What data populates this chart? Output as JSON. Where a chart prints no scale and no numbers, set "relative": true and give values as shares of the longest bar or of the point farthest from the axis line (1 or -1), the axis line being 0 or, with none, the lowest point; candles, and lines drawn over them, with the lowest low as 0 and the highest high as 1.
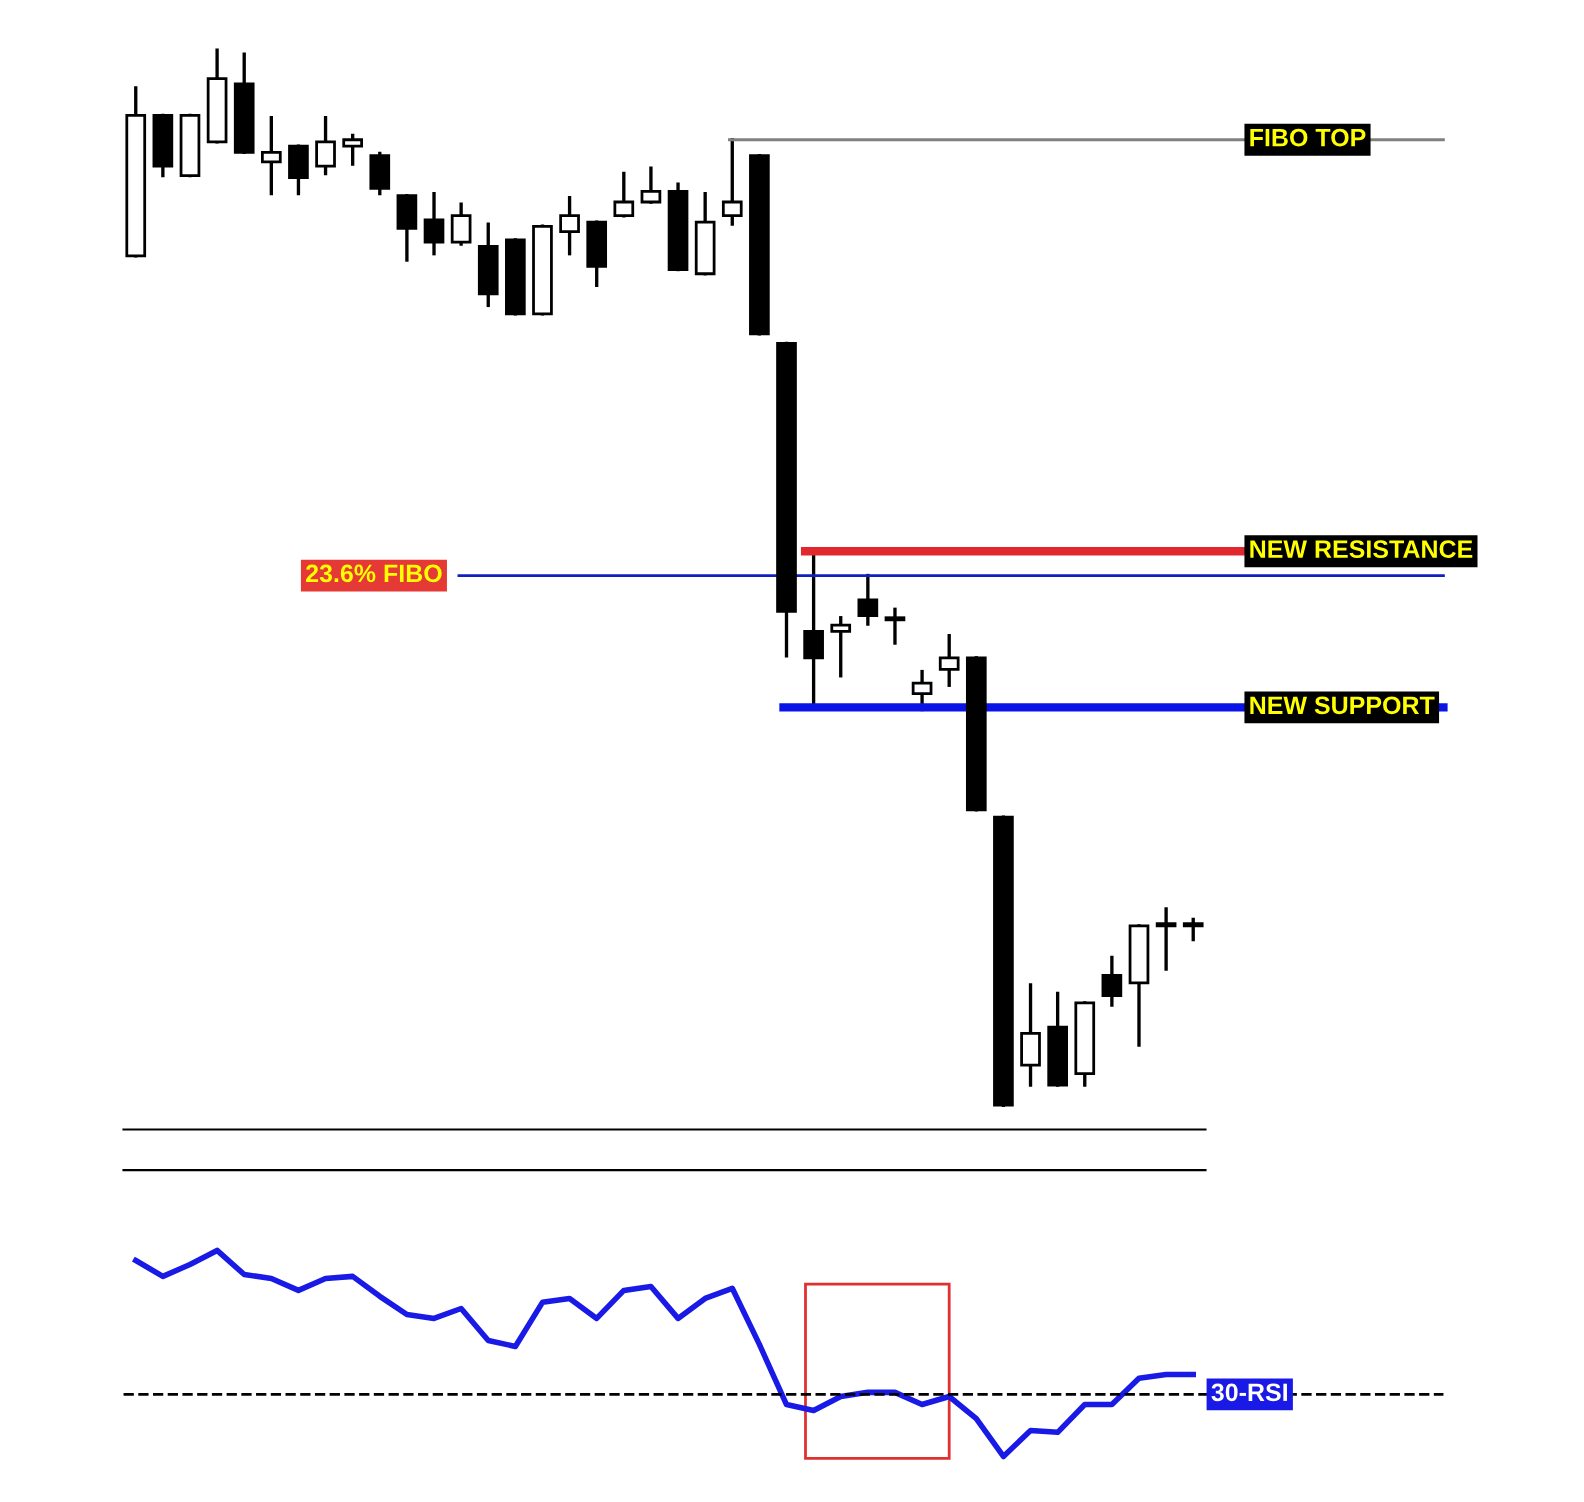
{
  "chart_data": [
    {
      "type": "candlestick",
      "relative": true,
      "categories": [
        null,
        null,
        null,
        null,
        null,
        null,
        null,
        null,
        null,
        null,
        null,
        null,
        null,
        null,
        null,
        null,
        null,
        null,
        null,
        null,
        null,
        null,
        null,
        null,
        null,
        null,
        null,
        null,
        null,
        null,
        null,
        null,
        null,
        null,
        null,
        null,
        null,
        null,
        null,
        null
      ],
      "ohlc": [
        [
          0.805,
          0.964,
          0.805,
          0.938
        ],
        [
          0.938,
          0.938,
          0.881,
          0.89
        ],
        [
          0.881,
          0.938,
          0.881,
          0.938
        ],
        [
          0.913,
          1.0,
          0.913,
          0.973
        ],
        [
          0.968,
          0.996,
          0.903,
          0.903
        ],
        [
          0.894,
          0.936,
          0.864,
          0.903
        ],
        [
          0.909,
          0.909,
          0.864,
          0.879
        ],
        [
          0.89,
          0.936,
          0.883,
          0.913
        ],
        [
          0.909,
          0.919,
          0.892,
          0.915
        ],
        [
          0.9,
          0.902,
          0.864,
          0.869
        ],
        [
          0.862,
          0.862,
          0.801,
          0.831
        ],
        [
          0.839,
          0.864,
          0.807,
          0.818
        ],
        [
          0.818,
          0.854,
          0.816,
          0.843
        ],
        [
          0.814,
          0.835,
          0.758,
          0.769
        ],
        [
          0.82,
          0.82,
          0.75,
          0.75
        ],
        [
          0.75,
          0.833,
          0.75,
          0.833
        ],
        [
          0.828,
          0.86,
          0.807,
          0.843
        ],
        [
          0.837,
          0.837,
          0.777,
          0.795
        ],
        [
          0.843,
          0.883,
          0.843,
          0.856
        ],
        [
          0.856,
          0.888,
          0.856,
          0.866
        ],
        [
          0.866,
          0.873,
          0.792,
          0.792
        ],
        [
          0.788,
          0.864,
          0.788,
          0.837
        ],
        [
          0.843,
          0.915,
          0.835,
          0.856
        ],
        [
          0.9,
          0.9,
          0.731,
          0.731
        ],
        [
          0.722,
          0.722,
          0.426,
          0.468
        ],
        [
          0.449,
          0.521,
          0.379,
          0.424
        ],
        [
          0.449,
          0.462,
          0.407,
          0.455
        ],
        [
          0.479,
          0.502,
          0.456,
          0.464
        ],
        [
          0.462,
          0.47,
          0.438,
          0.46
        ],
        [
          0.39,
          0.411,
          0.375,
          0.4
        ],
        [
          0.413,
          0.445,
          0.398,
          0.424
        ],
        [
          0.424,
          0.424,
          0.28,
          0.28
        ],
        [
          0.273,
          0.273,
          0,
          0
        ],
        [
          0.038,
          0.114,
          0.019,
          0.068
        ],
        [
          0.074,
          0.106,
          0.019,
          0.019
        ],
        [
          0.03,
          0.097,
          0.019,
          0.097
        ],
        [
          0.123,
          0.14,
          0.095,
          0.104
        ],
        [
          0.116,
          0.17,
          0.057,
          0.17
        ],
        [
          0.172,
          0.186,
          0.129,
          0.17
        ],
        [
          0.172,
          0.176,
          0.157,
          0.17
        ]
      ],
      "ref_lines": [
        {
          "axis": "y",
          "value": 0.915,
          "label": "FIBO TOP",
          "color": "#808080"
        },
        {
          "axis": "y",
          "value": 0.525,
          "label": "NEW RESISTANCE",
          "color": "#e0282e"
        },
        {
          "axis": "y",
          "value": 0.377,
          "label": "NEW SUPPORT",
          "color": "#0a14e6"
        },
        {
          "axis": "y",
          "value": 0.502,
          "label": "23.6% FIBO",
          "color": "#1020c0"
        }
      ],
      "grid": false,
      "legend": false
    },
    {
      "type": "line",
      "relative": true,
      "categories": [
        null,
        null,
        null,
        null,
        null,
        null,
        null,
        null,
        null,
        null,
        null,
        null,
        null,
        null,
        null,
        null,
        null,
        null,
        null,
        null,
        null,
        null,
        null,
        null,
        null,
        null,
        null,
        null,
        null,
        null,
        null,
        null,
        null,
        null,
        null,
        null,
        null,
        null,
        null,
        null
      ],
      "series": [
        {
          "color": "#1a1ae6",
          "values": [
            0.951,
            0.874,
            0.932,
            1.0,
            0.883,
            0.864,
            0.806,
            0.864,
            0.874,
            0.777,
            0.689,
            0.67,
            0.718,
            0.563,
            0.534,
            0.748,
            0.767,
            0.67,
            0.806,
            0.825,
            0.67,
            0.767,
            0.816,
            0.544,
            0.252,
            0.223,
            0.291,
            0.311,
            0.311,
            0.252,
            0.291,
            0.184,
            0,
            0.126,
            0.117,
            0.252,
            0.252,
            0.379,
            0.398,
            0.398
          ]
        }
      ],
      "ref_lines": [
        {
          "axis": "y",
          "value": 0.301,
          "label": "30-RSI",
          "color": "#000000",
          "line_style": "dashed"
        }
      ],
      "marker": "none",
      "line_style": "solid",
      "grid": false,
      "legend": false
    }
  ]
}
